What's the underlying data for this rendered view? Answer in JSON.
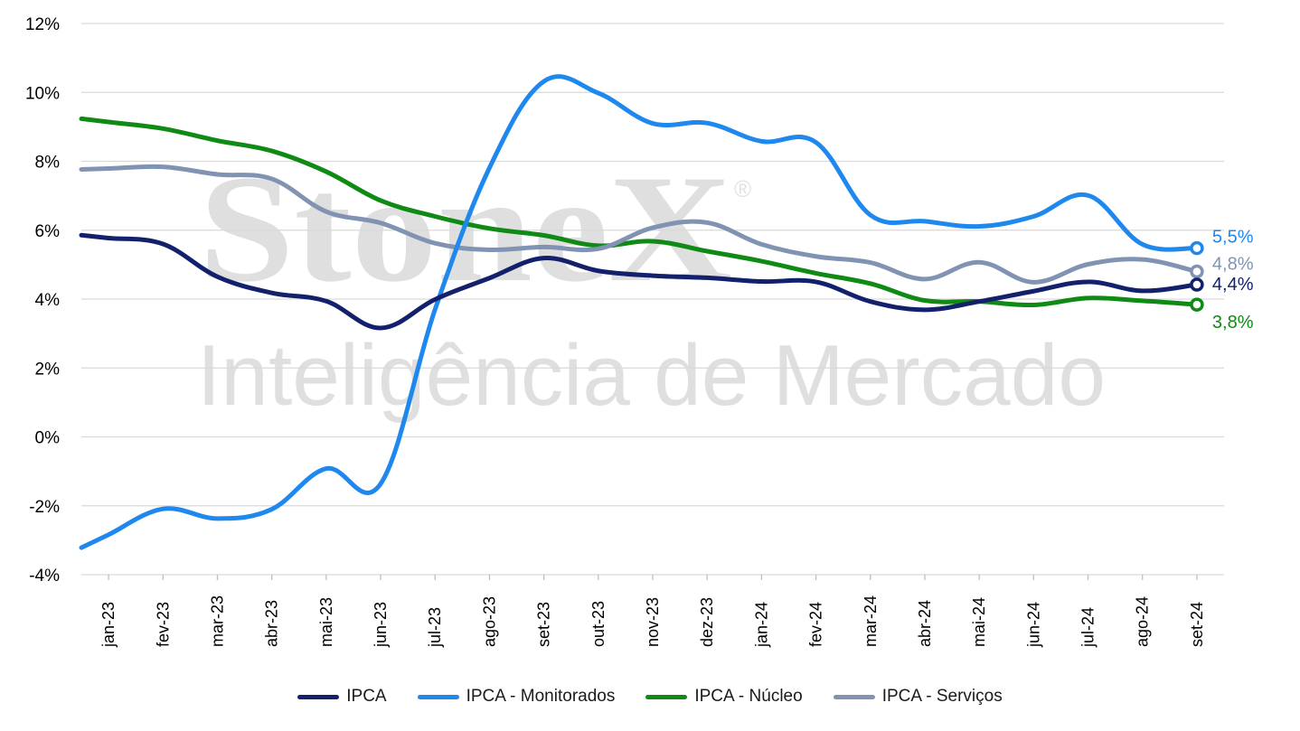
{
  "chart_data": {
    "type": "line",
    "x": [
      "jan-23",
      "fev-23",
      "mar-23",
      "abr-23",
      "mai-23",
      "jun-23",
      "jul-23",
      "ago-23",
      "set-23",
      "out-23",
      "nov-23",
      "dez-23",
      "jan-24",
      "fev-24",
      "mar-24",
      "abr-24",
      "mai-24",
      "jun-24",
      "jul-24",
      "ago-24",
      "set-24"
    ],
    "ylim": [
      -4,
      12
    ],
    "yticks": [
      -4,
      -2,
      0,
      2,
      4,
      6,
      8,
      10,
      12
    ],
    "ytick_labels": [
      "-4%",
      "-2%",
      "0%",
      "2%",
      "4%",
      "6%",
      "8%",
      "10%",
      "12%"
    ],
    "grid": true,
    "legend_position": "bottom",
    "series": [
      {
        "name": "IPCA",
        "color": "#13206b",
        "values": [
          5.77,
          5.6,
          4.65,
          4.18,
          3.94,
          3.16,
          3.99,
          4.61,
          5.19,
          4.82,
          4.68,
          4.62,
          4.51,
          4.5,
          3.93,
          3.69,
          3.93,
          4.23,
          4.5,
          4.24,
          4.42
        ],
        "end_label": "4,4%"
      },
      {
        "name": "IPCA - Monitorados",
        "color": "#1e88ee",
        "values": [
          -2.84,
          -2.09,
          -2.37,
          -2.1,
          -0.92,
          -1.36,
          3.7,
          7.81,
          10.32,
          9.98,
          9.1,
          9.11,
          8.58,
          8.55,
          6.44,
          6.26,
          6.11,
          6.4,
          7.01,
          5.59,
          5.48
        ],
        "end_label": "5,5%"
      },
      {
        "name": "IPCA - Núcleo",
        "color": "#0f8a14",
        "values": [
          9.14,
          8.95,
          8.6,
          8.3,
          7.7,
          6.86,
          6.4,
          6.05,
          5.85,
          5.55,
          5.68,
          5.39,
          5.1,
          4.75,
          4.45,
          3.96,
          3.93,
          3.83,
          4.03,
          3.95,
          3.84
        ],
        "end_label": "3,8%"
      },
      {
        "name": "IPCA - Serviços",
        "color": "#8193b2",
        "values": [
          7.79,
          7.84,
          7.62,
          7.49,
          6.54,
          6.21,
          5.62,
          5.43,
          5.51,
          5.46,
          6.07,
          6.22,
          5.59,
          5.24,
          5.06,
          4.58,
          5.07,
          4.49,
          5.01,
          5.15,
          4.8
        ],
        "end_label": "4,8%"
      }
    ]
  },
  "watermark": {
    "brand": "StoneX",
    "reg_mark": "®",
    "tagline": "Inteligência de Mercado"
  }
}
